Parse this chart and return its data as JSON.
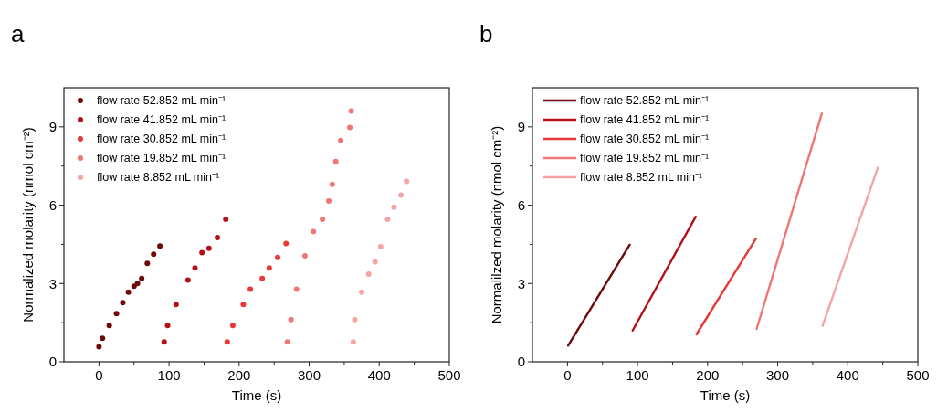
{
  "chart_data": [
    {
      "type": "scatter",
      "title": "a",
      "xlabel": "Time (s)",
      "ylabel": "Normalized molarity (nmol cm⁻²)",
      "xlim": [
        -50,
        500
      ],
      "ylim": [
        0,
        10.5
      ],
      "xticks": [
        0,
        {
          "value": 50,
          "label": null
        },
        100,
        {
          "value": 150,
          "label": null
        },
        200,
        {
          "value": 250,
          "label": null
        },
        300,
        {
          "value": 350,
          "label": null
        },
        400,
        {
          "value": 450,
          "label": null
        },
        500
      ],
      "yticks": [
        0,
        {
          "value": 1.5,
          "label": null
        },
        3,
        {
          "value": 4.5,
          "label": null
        },
        6,
        {
          "value": 7.5,
          "label": null
        },
        9
      ],
      "grid": false,
      "legend": "top left",
      "marker": "circle",
      "series": [
        {
          "name": "flow rate 52.852 mL min⁻¹",
          "color": "#6e0a0a",
          "x": [
            0,
            5,
            14.7,
            25,
            34,
            42,
            50,
            55,
            61,
            69,
            78,
            87
          ],
          "values": [
            0.58,
            0.9,
            1.39,
            1.85,
            2.27,
            2.67,
            2.9,
            3.0,
            3.19,
            3.77,
            4.12,
            4.44
          ]
        },
        {
          "name": "flow rate 41.852 mL min⁻¹",
          "color": "#b5101a",
          "x": [
            93,
            98,
            110,
            127,
            137,
            147,
            157,
            169,
            181
          ],
          "values": [
            0.76,
            1.39,
            2.2,
            3.13,
            3.6,
            4.18,
            4.35,
            4.76,
            5.46
          ]
        },
        {
          "name": "flow rate 30.852 mL min⁻¹",
          "color": "#e83838",
          "x": [
            183,
            191,
            206,
            216,
            233,
            243,
            255,
            267
          ],
          "values": [
            0.76,
            1.39,
            2.2,
            2.78,
            3.19,
            3.6,
            4.0,
            4.53
          ]
        },
        {
          "name": "flow rate 19.852 mL min⁻¹",
          "color": "#f07575",
          "x": [
            269,
            274,
            282,
            294,
            306,
            319,
            328,
            333,
            338,
            345,
            358,
            360
          ],
          "values": [
            0.76,
            1.62,
            2.78,
            4.06,
            4.99,
            5.46,
            6.16,
            6.8,
            7.67,
            8.48,
            8.98,
            9.61
          ]
        },
        {
          "name": "flow rate 8.852 mL min⁻¹",
          "color": "#f5a3a3",
          "x": [
            363,
            365,
            375,
            385,
            394,
            402,
            412,
            421,
            431,
            439
          ],
          "values": [
            0.76,
            1.62,
            2.67,
            3.36,
            3.83,
            4.41,
            5.46,
            5.92,
            6.39,
            6.91
          ]
        }
      ]
    },
    {
      "type": "line",
      "title": "b",
      "xlabel": "Time (s)",
      "ylabel": "Normalilzed molarity  (nmol cm⁻²)",
      "xlim": [
        -50,
        500
      ],
      "ylim": [
        0,
        10.5
      ],
      "xticks": [
        0,
        {
          "value": 50,
          "label": null
        },
        100,
        {
          "value": 150,
          "label": null
        },
        200,
        {
          "value": 250,
          "label": null
        },
        300,
        {
          "value": 350,
          "label": null
        },
        400,
        {
          "value": 450,
          "label": null
        },
        500
      ],
      "yticks": [
        0,
        {
          "value": 1.5,
          "label": null
        },
        3,
        {
          "value": 4.5,
          "label": null
        },
        6,
        {
          "value": 7.5,
          "label": null
        },
        9
      ],
      "grid": false,
      "legend": "top left",
      "marker": "none",
      "line_style": "solid",
      "series": [
        {
          "name": "flow rate 52.852 mL min⁻¹",
          "color": "#6e0a0a",
          "x": [
            0.9,
            89
          ],
          "values": [
            0.62,
            4.49
          ]
        },
        {
          "name": "flow rate 41.852 mL min⁻¹",
          "color": "#b5101a",
          "x": [
            93,
            183
          ],
          "values": [
            1.2,
            5.56
          ]
        },
        {
          "name": "flow rate 30.852 mL min⁻¹",
          "color": "#e83838",
          "x": [
            184,
            269
          ],
          "values": [
            1.05,
            4.72
          ]
        },
        {
          "name": "flow rate 19.852 mL min⁻¹",
          "color": "#f07575",
          "x": [
            270,
            363
          ],
          "values": [
            1.26,
            9.51
          ]
        },
        {
          "name": "flow rate 8.852 mL min⁻¹",
          "color": "#f5a3a3",
          "x": [
            364,
            443
          ],
          "values": [
            1.38,
            7.44
          ]
        }
      ]
    }
  ]
}
